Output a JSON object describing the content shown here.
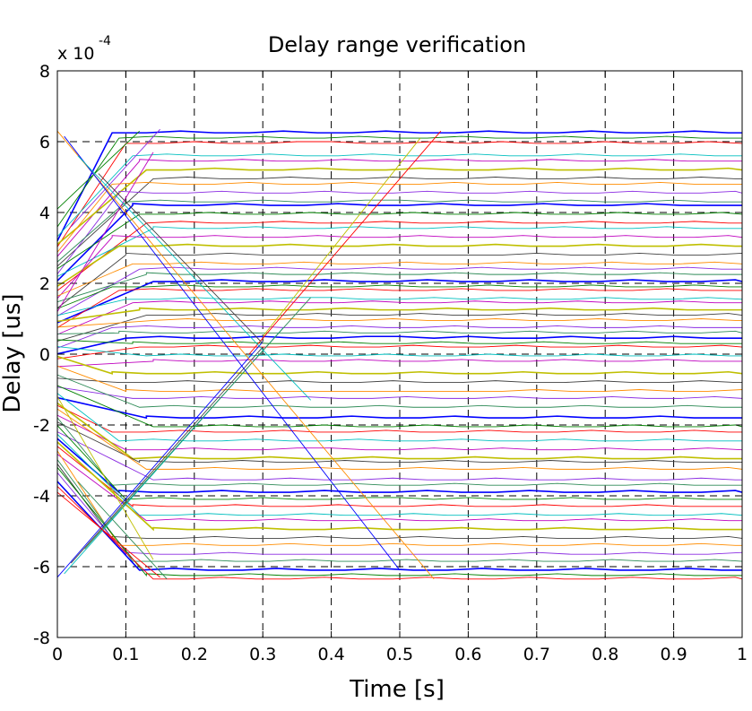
{
  "chart_data": {
    "type": "line",
    "title": "Delay range verification",
    "xlabel": "Time [s]",
    "ylabel": "Delay [us]",
    "y_multiplier": "x 10",
    "y_multiplier_exponent": "-4",
    "xlim": [
      0,
      1
    ],
    "ylim": [
      -8,
      8
    ],
    "x_ticks": [
      "0",
      "0.1",
      "0.2",
      "0.3",
      "0.4",
      "0.5",
      "0.6",
      "0.7",
      "0.8",
      "0.9",
      "1"
    ],
    "y_ticks": [
      "8",
      "6",
      "4",
      "2",
      "0",
      "-2",
      "-4",
      "-6",
      "-8"
    ],
    "x_tick_values": [
      0,
      0.1,
      0.2,
      0.3,
      0.4,
      0.5,
      0.6,
      0.7,
      0.8,
      0.9,
      1
    ],
    "y_tick_values": [
      8,
      6,
      4,
      2,
      0,
      -2,
      -4,
      -6,
      -8
    ],
    "grid": true,
    "grid_style": "dashed",
    "legend": "none",
    "unit_scale": "1e-4",
    "series_colors": [
      "#0000ff",
      "#008000",
      "#ff0000",
      "#00bfbf",
      "#bf00bf",
      "#bfbf00",
      "#404040",
      "#ff8c00",
      "#8a2be2",
      "#2e8b57"
    ],
    "settled_levels": [
      6.25,
      6.1,
      5.95,
      5.6,
      5.45,
      5.2,
      4.95,
      4.8,
      4.55,
      4.3,
      4.2,
      3.95,
      3.7,
      3.55,
      3.3,
      3.05,
      2.8,
      2.55,
      2.4,
      2.25,
      2.05,
      1.9,
      1.8,
      1.55,
      1.45,
      1.25,
      1.1,
      0.95,
      0.75,
      0.6,
      0.45,
      0.3,
      0.2,
      -0.05,
      -0.2,
      -0.55,
      -0.8,
      -1.05,
      -1.25,
      -1.5,
      -1.8,
      -2.05,
      -2.2,
      -2.45,
      -2.7,
      -2.95,
      -3.05,
      -3.25,
      -3.55,
      -3.7,
      -3.9,
      -4.1,
      -4.3,
      -4.55,
      -4.7,
      -4.95,
      -5.2,
      -5.4,
      -5.65,
      -5.85,
      -6.1,
      -6.25,
      -6.35
    ],
    "ramps": [
      {
        "x": [
          0.0,
          0.3
        ],
        "y": [
          -6.3,
          0.35
        ]
      },
      {
        "x": [
          0.01,
          0.33
        ],
        "y": [
          -6.2,
          0.75
        ]
      },
      {
        "x": [
          0.02,
          0.3
        ],
        "y": [
          -5.9,
          0.2
        ]
      },
      {
        "x": [
          0.04,
          0.37
        ],
        "y": [
          -5.5,
          1.6
        ]
      },
      {
        "x": [
          0.28,
          0.56
        ],
        "y": [
          0.0,
          6.3
        ]
      },
      {
        "x": [
          0.3,
          0.53
        ],
        "y": [
          0.5,
          6.1
        ]
      },
      {
        "x": [
          0.02,
          0.15
        ],
        "y": [
          3.6,
          6.35
        ]
      },
      {
        "x": [
          0.0,
          0.12
        ],
        "y": [
          4.1,
          6.3
        ]
      },
      {
        "x": [
          0.0,
          0.14
        ],
        "y": [
          1.2,
          5.7
        ]
      },
      {
        "x": [
          0.0,
          0.55
        ],
        "y": [
          6.3,
          -6.35
        ]
      },
      {
        "x": [
          0.01,
          0.5
        ],
        "y": [
          6.15,
          -6.1
        ]
      },
      {
        "x": [
          0.03,
          0.37
        ],
        "y": [
          5.6,
          -1.3
        ]
      },
      {
        "x": [
          0.06,
          0.3
        ],
        "y": [
          5.1,
          0.3
        ]
      },
      {
        "x": [
          0.03,
          0.16
        ],
        "y": [
          -3.6,
          -6.35
        ]
      },
      {
        "x": [
          0.0,
          0.15
        ],
        "y": [
          -3.9,
          -6.3
        ]
      },
      {
        "x": [
          0.0,
          0.14
        ],
        "y": [
          -1.2,
          -5.8
        ]
      }
    ]
  }
}
